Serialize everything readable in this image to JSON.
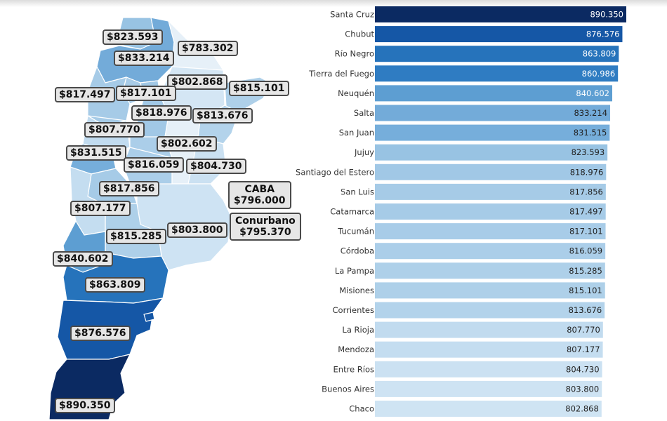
{
  "chart_data": {
    "type": "bar",
    "orientation": "horizontal",
    "decimal_separator": ".",
    "categories": [
      "Santa Cruz",
      "Chubut",
      "Río Negro",
      "Tierra del Fuego",
      "Neuquén",
      "Salta",
      "San Juan",
      "Jujuy",
      "Santiago del Estero",
      "San Luis",
      "Catamarca",
      "Tucumán",
      "Córdoba",
      "La Pampa",
      "Misiones",
      "Corrientes",
      "La Rioja",
      "Mendoza",
      "Entre Ríos",
      "Buenos Aires",
      "Chaco"
    ],
    "values": [
      890.35,
      876.576,
      863.809,
      860.986,
      840.602,
      833.214,
      831.515,
      823.593,
      818.976,
      817.856,
      817.497,
      817.101,
      816.059,
      815.285,
      815.101,
      813.676,
      807.77,
      807.177,
      804.73,
      803.8,
      802.868
    ],
    "value_labels": [
      "890.350",
      "876.576",
      "863.809",
      "860.986",
      "840.602",
      "833.214",
      "831.515",
      "823.593",
      "818.976",
      "817.856",
      "817.497",
      "817.101",
      "816.059",
      "815.285",
      "815.101",
      "813.676",
      "807.770",
      "807.177",
      "804.730",
      "803.800",
      "802.868"
    ],
    "xlim": [
      0,
      890.35
    ],
    "colors": [
      "#0b2a62",
      "#1557a6",
      "#2673bb",
      "#2f7cc2",
      "#5d9ed2",
      "#73abd9",
      "#76aedb",
      "#98c3e3",
      "#a1c8e6",
      "#a6cbe7",
      "#a6cbe7",
      "#a8cce8",
      "#abcee9",
      "#aed0e9",
      "#aed0e9",
      "#b3d3eb",
      "#c1dbef",
      "#c4ddf0",
      "#cbe1f2",
      "#cee3f3",
      "#cfe4f3"
    ],
    "map_labels": [
      "$823.593",
      "$783.302",
      "$833.214",
      "$802.868",
      "$815.101",
      "$817.497",
      "$817.101",
      "$818.976",
      "$813.676",
      "$807.770",
      "$802.602",
      "$831.515",
      "$816.059",
      "$804.730",
      "$817.856",
      "$807.177",
      "$815.285",
      "$803.800",
      "$840.602",
      "$863.809",
      "$876.576",
      "$890.350"
    ],
    "map_callouts": [
      {
        "name": "CABA",
        "value": "$796.000"
      },
      {
        "name": "Conurbano",
        "value": "$795.370"
      }
    ]
  }
}
